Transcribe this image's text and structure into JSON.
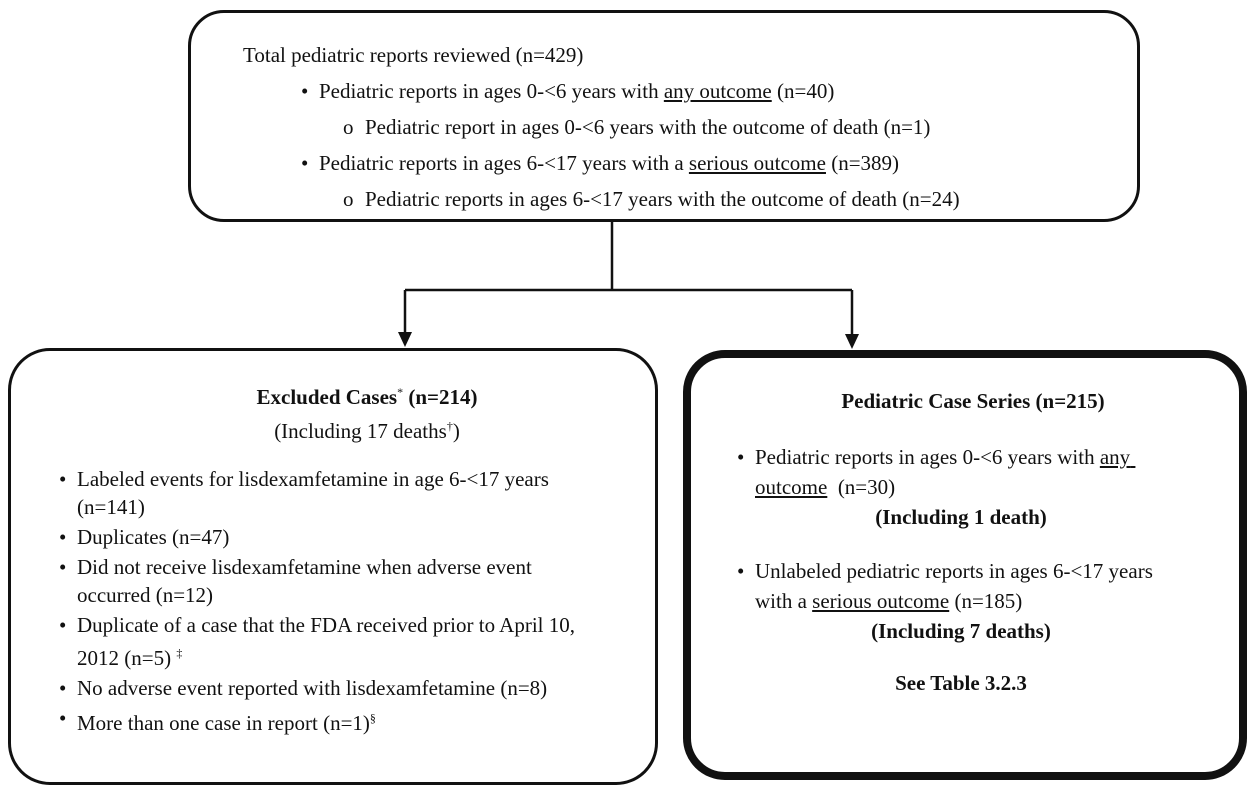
{
  "top_box": {
    "heading": "Total pediatric reports reviewed (n=429)",
    "items": [
      {
        "before": "Pediatric reports in ages 0-<6 years with ",
        "underlined": "any outcome",
        "after": " (n=40)",
        "sub": "Pediatric report in ages 0-<6 years with the outcome of death (n=1)"
      },
      {
        "before": "Pediatric reports in ages 6-<17 years with a ",
        "underlined": "serious outcome",
        "after": " (n=389)",
        "sub": "Pediatric reports in ages 6-<17 years with the outcome of death (n=24)"
      }
    ]
  },
  "left_box": {
    "title": "Excluded Cases",
    "title_mark": "*",
    "title_count": " (n=214)",
    "subtitle": "(Including 17 deaths",
    "subtitle_mark": "†",
    "subtitle_end": ")",
    "items": [
      {
        "text": "Labeled events for lisdexamfetamine in age 6-<17 years (n=141)"
      },
      {
        "text": "Duplicates (n=47)"
      },
      {
        "text": "Did not receive lisdexamfetamine when adverse event occurred (n=12)"
      },
      {
        "text": "Duplicate of a case that the FDA received prior to April 10, 2012 (n=5)",
        "mark": "‡"
      },
      {
        "text": "No adverse event reported with lisdexamfetamine (n=8)"
      },
      {
        "text": "More than one case in report (n=1)",
        "mark": "§"
      }
    ]
  },
  "right_box": {
    "title": "Pediatric Case Series (n=215)",
    "items": [
      {
        "before": "Pediatric reports in ages 0-<6 years with ",
        "underlined": "any outcome",
        "after": "  (n=30)",
        "note": "(Including 1 death)"
      },
      {
        "before": "Unlabeled pediatric reports in ages 6-<17 years with a ",
        "underlined": "serious outcome",
        "after": " (n=185)",
        "note": "(Including 7 deaths)"
      }
    ],
    "footer": "See Table 3.2.3"
  }
}
